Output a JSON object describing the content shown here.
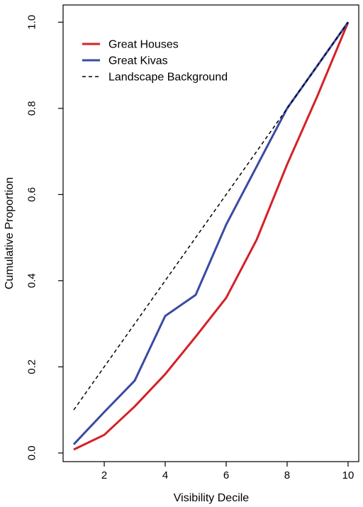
{
  "chart_data": {
    "type": "line",
    "xlabel": "Visibility Decile",
    "ylabel": "Cumulative Proportion",
    "xlim": [
      0.65,
      10.35
    ],
    "ylim": [
      -0.02,
      1.04
    ],
    "x_ticks": [
      2,
      4,
      6,
      8,
      10
    ],
    "x_tick_labels": [
      "2",
      "4",
      "6",
      "8",
      "10"
    ],
    "y_ticks": [
      0.0,
      0.2,
      0.4,
      0.6,
      0.8,
      1.0
    ],
    "y_tick_labels": [
      "0.0",
      "0.2",
      "0.4",
      "0.6",
      "0.8",
      "1.0"
    ],
    "grid": false,
    "legend_position": "top-left",
    "series": [
      {
        "name": "Great Houses",
        "color": "#d62027",
        "line_style": "solid",
        "x": [
          1,
          2,
          3,
          4,
          5,
          6,
          7,
          8,
          9,
          10
        ],
        "values": [
          0.008,
          0.042,
          0.108,
          0.183,
          0.27,
          0.36,
          0.495,
          0.67,
          0.83,
          1.0
        ]
      },
      {
        "name": "Great Kivas",
        "color": "#3a4ba3",
        "line_style": "solid",
        "x": [
          1,
          2,
          3,
          4,
          5,
          6,
          7,
          8,
          9,
          10
        ],
        "values": [
          0.02,
          0.095,
          0.168,
          0.318,
          0.367,
          0.53,
          0.665,
          0.8,
          0.9,
          1.0
        ]
      },
      {
        "name": "Landscape Background",
        "color": "#000000",
        "line_style": "dashed",
        "x": [
          1,
          2,
          3,
          4,
          5,
          6,
          7,
          8,
          9,
          10
        ],
        "values": [
          0.1,
          0.2,
          0.3,
          0.4,
          0.5,
          0.6,
          0.7,
          0.8,
          0.9,
          1.0
        ]
      }
    ]
  }
}
